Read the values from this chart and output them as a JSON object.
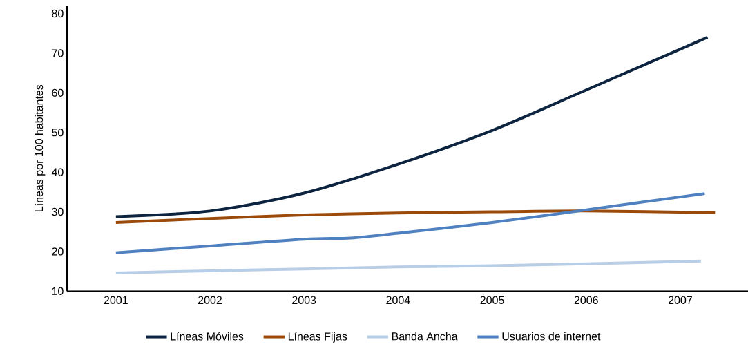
{
  "chart_data": {
    "type": "line",
    "ylabel": "Líneas por 100 habitantes",
    "xlim": [
      2000.48,
      2007.72
    ],
    "xticks": [
      2001,
      2002,
      2003,
      2004,
      2005,
      2006,
      2007
    ],
    "ylim": [
      10,
      82
    ],
    "yticks": [
      10,
      20,
      30,
      40,
      50,
      60,
      70,
      80
    ],
    "grid": false,
    "legend": "bottom",
    "marker": "none",
    "line_style": "solid",
    "series": [
      {
        "name": "Líneas Móviles",
        "color": "#0d2440",
        "x": [
          2001,
          2002,
          2003,
          2004,
          2005,
          2006,
          2007.29
        ],
        "values": [
          28.8,
          30.2,
          34.7,
          42,
          50.5,
          60.7,
          74
        ]
      },
      {
        "name": "Líneas Fijas",
        "color": "#9c4a0a",
        "x": [
          2001,
          2002,
          2003,
          2004,
          2005,
          2006,
          2007.37
        ],
        "values": [
          27.3,
          28.3,
          29.2,
          29.7,
          30,
          30.2,
          29.8
        ]
      },
      {
        "name": "Banda Ancha",
        "color": "#b8cde6",
        "x": [
          2001,
          2002,
          2003,
          2004,
          2005,
          2006,
          2007.22
        ],
        "values": [
          14.6,
          15.1,
          15.6,
          16.1,
          16.4,
          16.9,
          17.6
        ]
      },
      {
        "name": "Usuarios de internet",
        "color": "#4f81c0",
        "x": [
          2001,
          2002,
          2003,
          2003.5,
          2004,
          2005,
          2006,
          2007.26
        ],
        "values": [
          19.7,
          21.4,
          23.1,
          23.4,
          24.6,
          27.3,
          30.5,
          34.6
        ]
      }
    ]
  }
}
